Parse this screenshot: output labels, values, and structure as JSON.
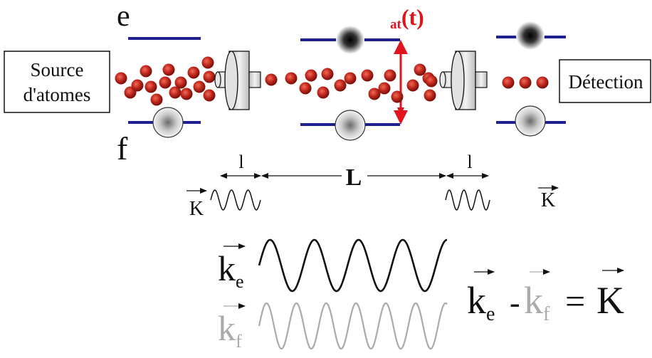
{
  "labels": {
    "level_e": "e",
    "level_f": "f",
    "delta": "at",
    "delta_t": "(t)",
    "source_line1": "Source",
    "source_line2": "d'atomes",
    "detection": "Détection",
    "small_l_left": "l",
    "big_L": "L",
    "small_l_right": "l",
    "K_left": "K",
    "K_right": "K",
    "k_main": "k",
    "sub_e": "e",
    "sub_f": "f",
    "eq_k1": "k",
    "eq_sub_e": "e",
    "eq_minus": "-",
    "eq_k2": "k",
    "eq_sub_f": "f",
    "eq_equals": "=",
    "eq_K": "K"
  },
  "colors": {
    "level_line": "#1f1f8f",
    "atom": "#c0281e",
    "delta": "#e0141e",
    "ke_wave": "#111111",
    "kf_wave": "#aaaaaa",
    "text": "#111111",
    "cavity": "#dcdcdc"
  }
}
